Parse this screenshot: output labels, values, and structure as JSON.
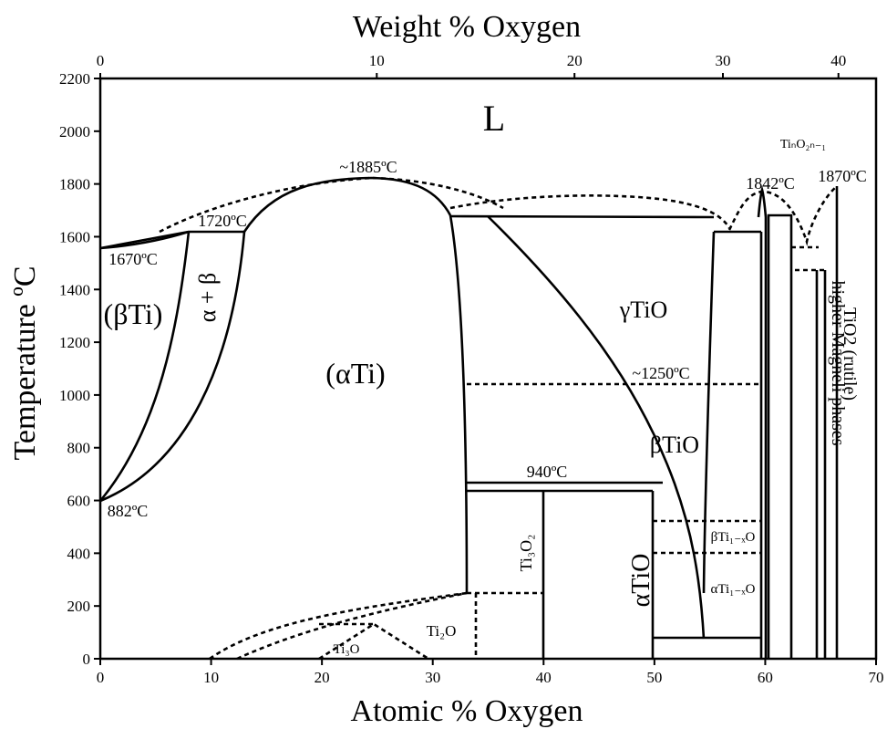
{
  "axes": {
    "x_bottom_title": "Atomic % Oxygen",
    "x_top_title": "Weight % Oxygen",
    "y_title": "Temperature ºC",
    "x_bottom_ticks": [
      "0",
      "10",
      "20",
      "30",
      "40",
      "50",
      "60",
      "70"
    ],
    "x_top_ticks": [
      "0",
      "10",
      "20",
      "30",
      "40"
    ],
    "y_ticks": [
      "0",
      "200",
      "400",
      "600",
      "800",
      "1000",
      "1200",
      "1400",
      "1600",
      "1800",
      "2000",
      "2200"
    ]
  },
  "labels": {
    "liquid": "L",
    "beta_ti": "(βTi)",
    "alpha_beta": "α + β",
    "alpha_ti": "(αTi)",
    "gamma_tio": "γTiO",
    "beta_tio": "βTiO",
    "alpha_tio": "αTiO",
    "ti3o2": "Ti₃O₂",
    "ti2o": "Ti₂O",
    "ti3o": "Ti₃O",
    "beta_ti1xo": "βTi₁₋ₓO",
    "alpha_ti1xo": "αTi₁₋ₓO",
    "magneli": "higher Magneli phases",
    "rutile": "TiO2 (rutile)",
    "tino": "TiₙO₂ₙ₋₁"
  },
  "temperatures": {
    "t1885": "~1885ºC",
    "t1720": "1720ºC",
    "t1670": "1670ºC",
    "t882": "882ºC",
    "t1250": "~1250ºC",
    "t940": "940ºC",
    "t1842": "1842ºC",
    "t1870": "1870ºC"
  }
}
